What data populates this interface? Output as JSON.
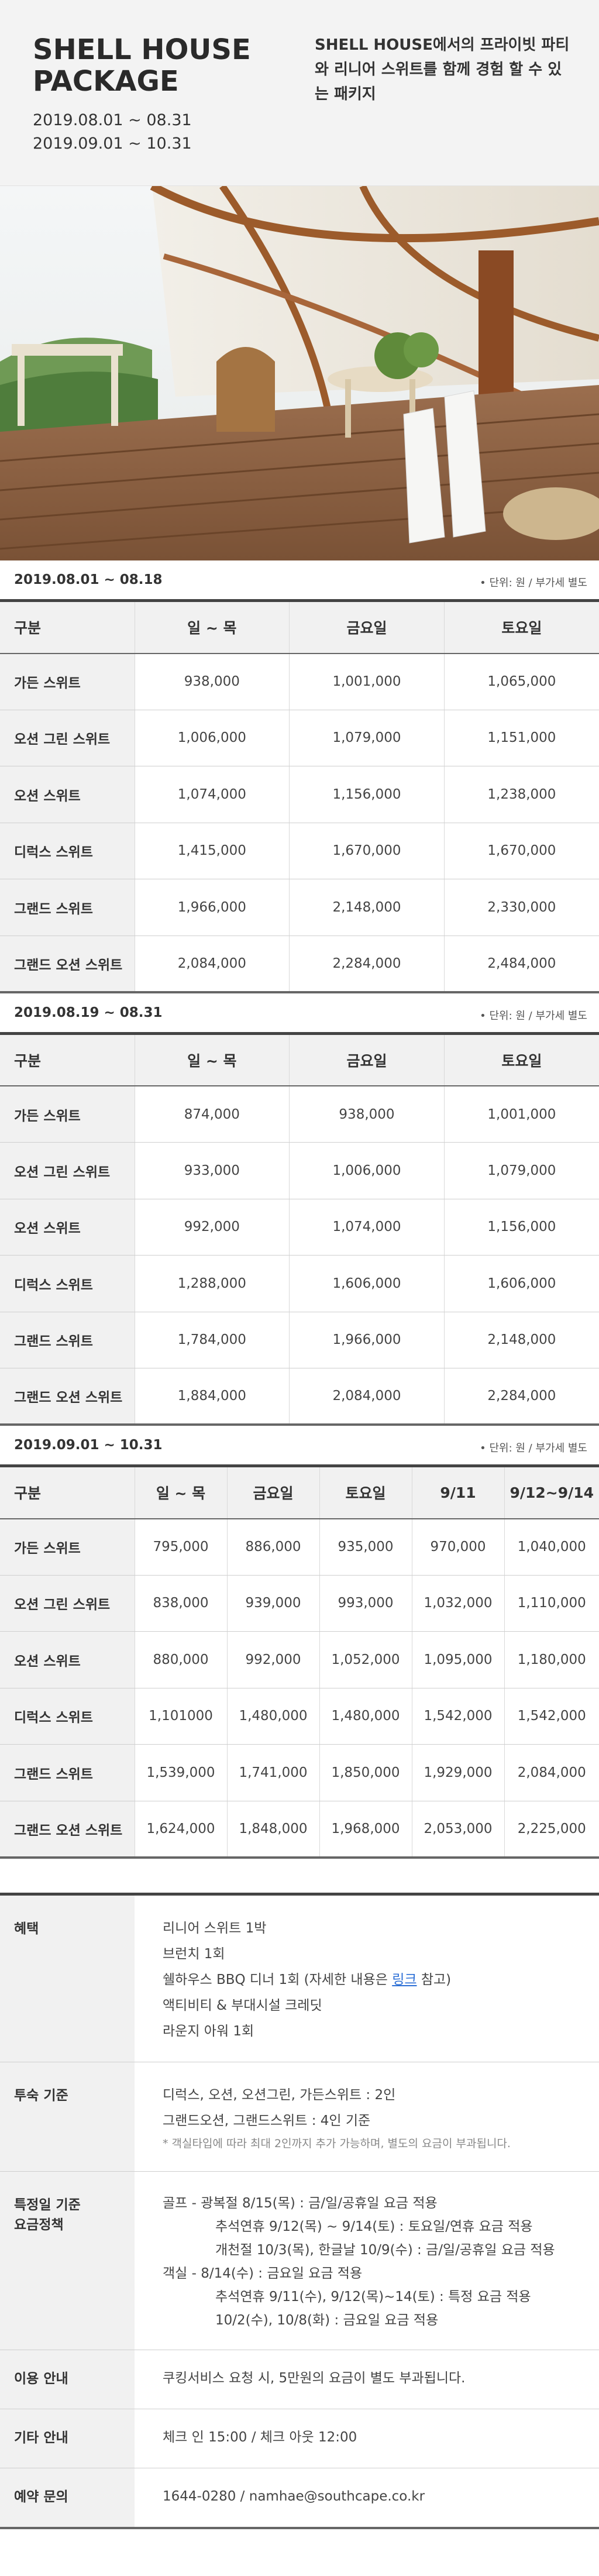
{
  "header": {
    "title": "SHELL HOUSE PACKAGE",
    "dates": [
      "2019.08.01 ~ 08.31",
      "2019.09.01 ~ 10.31"
    ],
    "description": "SHELL HOUSE에서의 프라이빗 파티와 리니어 스위트를 함께 경험 할 수 있는 패키지"
  },
  "photo": {
    "icon": "resort-deck-photo"
  },
  "unit_note": "• 단위: 원 / 부가세 별도",
  "rooms": [
    "가든 스위트",
    "오션 그린 스위트",
    "오션 스위트",
    "디럭스 스위트",
    "그랜드 스위트",
    "그랜드 오션 스위트"
  ],
  "sections": [
    {
      "period": "2019.08.01 ~ 08.18",
      "headers": [
        "구분",
        "일 ~ 목",
        "금요일",
        "토요일"
      ],
      "rows": [
        [
          "938,000",
          "1,001,000",
          "1,065,000"
        ],
        [
          "1,006,000",
          "1,079,000",
          "1,151,000"
        ],
        [
          "1,074,000",
          "1,156,000",
          "1,238,000"
        ],
        [
          "1,415,000",
          "1,670,000",
          "1,670,000"
        ],
        [
          "1,966,000",
          "2,148,000",
          "2,330,000"
        ],
        [
          "2,084,000",
          "2,284,000",
          "2,484,000"
        ]
      ]
    },
    {
      "period": "2019.08.19 ~ 08.31",
      "headers": [
        "구분",
        "일 ~ 목",
        "금요일",
        "토요일"
      ],
      "rows": [
        [
          "874,000",
          "938,000",
          "1,001,000"
        ],
        [
          "933,000",
          "1,006,000",
          "1,079,000"
        ],
        [
          "992,000",
          "1,074,000",
          "1,156,000"
        ],
        [
          "1,288,000",
          "1,606,000",
          "1,606,000"
        ],
        [
          "1,784,000",
          "1,966,000",
          "2,148,000"
        ],
        [
          "1,884,000",
          "2,084,000",
          "2,284,000"
        ]
      ]
    },
    {
      "period": "2019.09.01 ~ 10.31",
      "headers": [
        "구분",
        "일 ~ 목",
        "금요일",
        "토요일",
        "9/11",
        "9/12~9/14"
      ],
      "rows": [
        [
          "795,000",
          "886,000",
          "935,000",
          "970,000",
          "1,040,000"
        ],
        [
          "838,000",
          "939,000",
          "993,000",
          "1,032,000",
          "1,110,000"
        ],
        [
          "880,000",
          "992,000",
          "1,052,000",
          "1,095,000",
          "1,180,000"
        ],
        [
          "1,101000",
          "1,480,000",
          "1,480,000",
          "1,542,000",
          "1,542,000"
        ],
        [
          "1,539,000",
          "1,741,000",
          "1,850,000",
          "1,929,000",
          "2,084,000"
        ],
        [
          "1,624,000",
          "1,848,000",
          "1,968,000",
          "2,053,000",
          "2,225,000"
        ]
      ]
    }
  ],
  "info": {
    "benefits": {
      "label": "혜택",
      "items": [
        "리니어 스위트 1박",
        "브런치 1회"
      ],
      "bbq_prefix": "쉘하우스 BBQ 디너 1회 (자세한 내용은 ",
      "bbq_link": "링크",
      "bbq_suffix": " 참고)",
      "items2": [
        "액티비티 & 부대시설 크레딧",
        "라운지 아워 1회"
      ]
    },
    "occupancy": {
      "label": "투숙 기준",
      "lines": [
        "디럭스, 오션, 오션그린, 가든스위트 : 2인",
        "그랜드오션, 그랜드스위트 : 4인 기준"
      ],
      "note": "* 객실타입에 따라 최대 2인까지 추가 가능하며, 별도의 요금이 부과됩니다."
    },
    "special_rates": {
      "label_line1": "특정일 기준",
      "label_line2": "요금정책",
      "golf_line": "골프 - 광복절 8/15(목) : 금/일/공휴일 요금 적용",
      "golf_sub": [
        "추석연휴 9/12(목) ~ 9/14(토) : 토요일/연휴 요금 적용",
        "개천절 10/3(목), 한글날 10/9(수) : 금/일/공휴일 요금 적용"
      ],
      "room_line": "객실 - 8/14(수) : 금요일 요금 적용",
      "room_sub": [
        "추석연휴 9/11(수), 9/12(목)~14(토) : 특정 요금 적용",
        "10/2(수), 10/8(화) : 금요일 요금 적용"
      ]
    },
    "usage": {
      "label": "이용 안내",
      "text": "쿠킹서비스 요청 시, 5만원의 요금이 별도 부과됩니다."
    },
    "other": {
      "label": "기타 안내",
      "text": "체크 인 15:00 / 체크 아웃 12:00"
    },
    "reservation": {
      "label": "예약 문의",
      "text": "1644-0280 / namhae@southcape.co.kr"
    }
  }
}
